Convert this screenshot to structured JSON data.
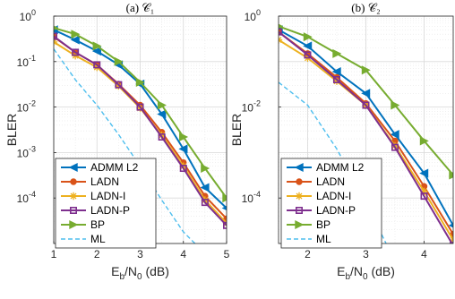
{
  "chart_data": [
    {
      "type": "line",
      "title": "(a) 𝒞₁",
      "xlabel_main": "E",
      "xlabel_sub": "b",
      "xlabel_rest": "/N",
      "xlabel_sub2": "0",
      "xlabel_tail": " (dB)",
      "ylabel": "BLER",
      "xscale": "linear",
      "yscale": "log",
      "xlim": [
        1,
        5
      ],
      "ylim_exp": [
        -5,
        0
      ],
      "xticks": [
        "1",
        "2",
        "3",
        "4",
        "5"
      ],
      "yticks": [
        {
          "base": "10",
          "exp": "0"
        },
        {
          "base": "10",
          "exp": "-1"
        },
        {
          "base": "10",
          "exp": "-2"
        },
        {
          "base": "10",
          "exp": "-3"
        },
        {
          "base": "10",
          "exp": "-4"
        }
      ],
      "grid": true,
      "legend_position": "bottom-left",
      "series": [
        {
          "name": "ADMM L2",
          "color": "#0072bd",
          "marker": "triangle-left",
          "dash": "solid",
          "x": [
            1,
            1.5,
            2,
            2.5,
            3,
            3.5,
            4,
            4.5,
            5
          ],
          "y": [
            0.5,
            0.3,
            0.17,
            0.085,
            0.032,
            0.007,
            0.0012,
            0.00017,
            6e-05
          ]
        },
        {
          "name": "LADN",
          "color": "#d95319",
          "marker": "circle",
          "dash": "solid",
          "x": [
            1,
            1.5,
            2,
            2.5,
            3,
            3.5,
            4,
            4.5,
            5
          ],
          "y": [
            0.35,
            0.16,
            0.085,
            0.032,
            0.011,
            0.0028,
            0.0006,
            0.00011,
            3.5e-05
          ]
        },
        {
          "name": "LADN-I",
          "color": "#edb120",
          "marker": "star",
          "dash": "solid",
          "x": [
            1,
            1.5,
            2,
            2.5,
            3,
            3.5,
            4,
            4.5,
            5
          ],
          "y": [
            0.27,
            0.135,
            0.075,
            0.029,
            0.0095,
            0.0024,
            0.0005,
            9e-05,
            2.8e-05
          ]
        },
        {
          "name": "LADN-P",
          "color": "#7e2f8e",
          "marker": "square",
          "dash": "solid",
          "x": [
            1,
            1.5,
            2,
            2.5,
            3,
            3.5,
            4,
            4.5,
            5
          ],
          "y": [
            0.36,
            0.16,
            0.085,
            0.031,
            0.01,
            0.0022,
            0.00045,
            8e-05,
            2.5e-05
          ]
        },
        {
          "name": "BP",
          "color": "#77ac30",
          "marker": "triangle-right",
          "dash": "solid",
          "x": [
            1,
            1.5,
            2,
            2.5,
            3,
            3.5,
            4,
            4.5,
            5
          ],
          "y": [
            0.55,
            0.4,
            0.22,
            0.1,
            0.035,
            0.011,
            0.0022,
            0.00045,
            0.0001
          ]
        },
        {
          "name": "ML",
          "color": "#4dbeee",
          "marker": "none",
          "dash": "dashed",
          "x": [
            1,
            1.5,
            2,
            2.5,
            3,
            3.5,
            4,
            4.5,
            5
          ],
          "y": [
            0.19,
            0.04,
            0.011,
            0.0025,
            0.0005,
            9e-05,
            1.8e-05,
            6e-06,
            2e-06
          ]
        }
      ]
    },
    {
      "type": "line",
      "title": "(b) 𝒞₂",
      "xlabel_main": "E",
      "xlabel_sub": "b",
      "xlabel_rest": "/N",
      "xlabel_sub2": "0",
      "xlabel_tail": " (dB)",
      "ylabel": "BLER",
      "xscale": "linear",
      "yscale": "log",
      "xlim": [
        1.5,
        4.5
      ],
      "ylim_exp": [
        -5,
        0
      ],
      "xticks": [
        "2",
        "3",
        "4"
      ],
      "yticks": [
        {
          "base": "10",
          "exp": "0"
        },
        {
          "base": "10",
          "exp": "-2"
        },
        {
          "base": "10",
          "exp": "-4"
        }
      ],
      "grid": true,
      "legend_position": "bottom-left",
      "series": [
        {
          "name": "ADMM L2",
          "color": "#0072bd",
          "marker": "triangle-left",
          "dash": "solid",
          "x": [
            1.5,
            2,
            2.5,
            3,
            3.5,
            4,
            4.5
          ],
          "y": [
            0.5,
            0.22,
            0.06,
            0.02,
            0.0025,
            0.00035,
            2.5e-05
          ]
        },
        {
          "name": "LADN",
          "color": "#d95319",
          "marker": "circle",
          "dash": "solid",
          "x": [
            1.5,
            2,
            2.5,
            3,
            3.5,
            4,
            4.5
          ],
          "y": [
            0.45,
            0.15,
            0.045,
            0.012,
            0.0018,
            0.00018,
            1.6e-05
          ]
        },
        {
          "name": "LADN-I",
          "color": "#edb120",
          "marker": "star",
          "dash": "solid",
          "x": [
            1.5,
            2,
            2.5,
            3,
            3.5,
            4,
            4.5
          ],
          "y": [
            0.3,
            0.12,
            0.037,
            0.011,
            0.0014,
            0.00014,
            1.2e-05
          ]
        },
        {
          "name": "LADN-P",
          "color": "#7e2f8e",
          "marker": "square",
          "dash": "solid",
          "x": [
            1.5,
            2,
            2.5,
            3,
            3.5,
            4,
            4.5
          ],
          "y": [
            0.45,
            0.14,
            0.04,
            0.011,
            0.0013,
            0.00011,
            9e-06
          ]
        },
        {
          "name": "BP",
          "color": "#77ac30",
          "marker": "triangle-right",
          "dash": "solid",
          "x": [
            1.5,
            2,
            2.5,
            3,
            3.5,
            4,
            4.5
          ],
          "y": [
            0.6,
            0.35,
            0.15,
            0.065,
            0.011,
            0.0018,
            0.00032
          ]
        },
        {
          "name": "ML",
          "color": "#4dbeee",
          "marker": "none",
          "dash": "dashed",
          "x": [
            1.5,
            2,
            2.5,
            3,
            3.5
          ],
          "y": [
            0.035,
            0.011,
            0.0012,
            8e-05,
            4e-06
          ]
        }
      ]
    }
  ]
}
